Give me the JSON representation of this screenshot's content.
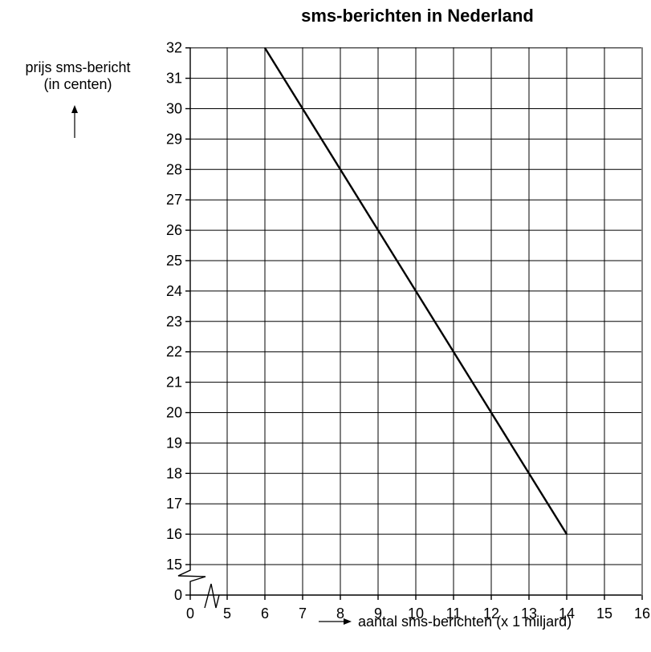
{
  "chart_data": {
    "type": "line",
    "title": "sms-berichten in Nederland",
    "xlabel": "aantal sms-berichten (x 1 miljard)",
    "ylabel_line1": "prijs sms-bericht",
    "ylabel_line2": "(in centen)",
    "xlim": [
      4,
      16
    ],
    "ylim": [
      15,
      32
    ],
    "x_axis_break": true,
    "y_axis_break": true,
    "x_ticks": [
      "0",
      "5",
      "6",
      "7",
      "8",
      "9",
      "10",
      "11",
      "12",
      "13",
      "14",
      "15",
      "16"
    ],
    "y_ticks": [
      "0",
      "15",
      "16",
      "17",
      "18",
      "19",
      "20",
      "21",
      "22",
      "23",
      "24",
      "25",
      "26",
      "27",
      "28",
      "29",
      "30",
      "31",
      "32"
    ],
    "grid": true,
    "series": [
      {
        "x": [
          6,
          14
        ],
        "y": [
          32,
          16
        ],
        "color": "#000000"
      }
    ]
  }
}
